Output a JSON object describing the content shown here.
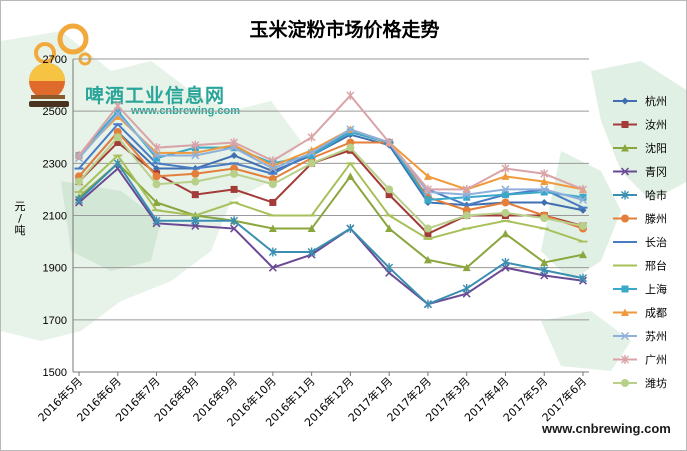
{
  "brand": {
    "name": "啤酒工业信息网",
    "url": "www.cnbrewing.com",
    "footer_url": "www.cnbrewing.com"
  },
  "chart_data": {
    "type": "line",
    "title": "玉米淀粉市场价格走势",
    "xlabel": "",
    "ylabel": "元/吨",
    "ylim": [
      1500,
      2700
    ],
    "yticks": [
      1500,
      1700,
      1900,
      2100,
      2300,
      2500,
      2700
    ],
    "grid": true,
    "legend_position": "right",
    "categories": [
      "2016年5月",
      "2016年6月",
      "2016年7月",
      "2016年8月",
      "2016年9月",
      "2016年10月",
      "2016年11月",
      "2016年12月",
      "2017年1月",
      "2017年2月",
      "2017年3月",
      "2017年4月",
      "2017年5月",
      "2017年6月"
    ],
    "series": [
      {
        "name": "杭州",
        "color": "#3f6fb0",
        "marker": "diamond",
        "values": [
          2250,
          2420,
          2280,
          2280,
          2330,
          2270,
          2330,
          2410,
          2370,
          2150,
          2140,
          2150,
          2150,
          2120
        ]
      },
      {
        "name": "汝州",
        "color": "#a33b38",
        "marker": "square",
        "values": [
          2230,
          2380,
          2260,
          2180,
          2200,
          2150,
          2300,
          2350,
          2180,
          2030,
          2100,
          2100,
          2100,
          2060
        ]
      },
      {
        "name": "沈阳",
        "color": "#8aa63c",
        "marker": "triangle",
        "values": [
          2170,
          2300,
          2150,
          2100,
          2080,
          2050,
          2050,
          2250,
          2050,
          1930,
          1900,
          2030,
          1920,
          1950
        ]
      },
      {
        "name": "青冈",
        "color": "#6a4a94",
        "marker": "x",
        "values": [
          2150,
          2280,
          2070,
          2060,
          2050,
          1900,
          1950,
          2050,
          1880,
          1760,
          1800,
          1900,
          1870,
          1850
        ]
      },
      {
        "name": "哈市",
        "color": "#3a8fb0",
        "marker": "star",
        "values": [
          2160,
          2300,
          2080,
          2080,
          2080,
          1960,
          1960,
          2050,
          1900,
          1760,
          1820,
          1920,
          1890,
          1860
        ]
      },
      {
        "name": "滕州",
        "color": "#e37f3b",
        "marker": "circle",
        "values": [
          2250,
          2420,
          2250,
          2260,
          2280,
          2240,
          2320,
          2380,
          2380,
          2170,
          2120,
          2150,
          2100,
          2050
        ]
      },
      {
        "name": "长治",
        "color": "#4a7cc4",
        "marker": "dash",
        "values": [
          2280,
          2450,
          2300,
          2280,
          2300,
          2260,
          2340,
          2420,
          2380,
          2200,
          2140,
          2180,
          2200,
          2130
        ]
      },
      {
        "name": "邢台",
        "color": "#a8c05a",
        "marker": "plus",
        "values": [
          2190,
          2330,
          2120,
          2100,
          2150,
          2100,
          2100,
          2300,
          2100,
          2010,
          2050,
          2080,
          2050,
          2000
        ]
      },
      {
        "name": "上海",
        "color": "#3aa8c8",
        "marker": "square",
        "values": [
          2330,
          2500,
          2320,
          2360,
          2360,
          2300,
          2330,
          2420,
          2380,
          2160,
          2170,
          2180,
          2190,
          2170
        ]
      },
      {
        "name": "成都",
        "color": "#f09a3c",
        "marker": "triangle",
        "values": [
          2330,
          2480,
          2340,
          2340,
          2370,
          2290,
          2350,
          2430,
          2380,
          2250,
          2200,
          2250,
          2230,
          2200
        ]
      },
      {
        "name": "苏州",
        "color": "#8fb0dc",
        "marker": "x",
        "values": [
          2320,
          2490,
          2330,
          2330,
          2360,
          2280,
          2340,
          2430,
          2380,
          2190,
          2180,
          2200,
          2200,
          2160
        ]
      },
      {
        "name": "广州",
        "color": "#d9a3a8",
        "marker": "star",
        "values": [
          2330,
          2520,
          2360,
          2370,
          2380,
          2310,
          2400,
          2560,
          2380,
          2200,
          2200,
          2280,
          2260,
          2200
        ]
      },
      {
        "name": "潍坊",
        "color": "#b8d08a",
        "marker": "circle",
        "values": [
          2230,
          2400,
          2220,
          2230,
          2260,
          2220,
          2300,
          2360,
          2200,
          2050,
          2100,
          2110,
          2090,
          2060
        ]
      }
    ]
  }
}
